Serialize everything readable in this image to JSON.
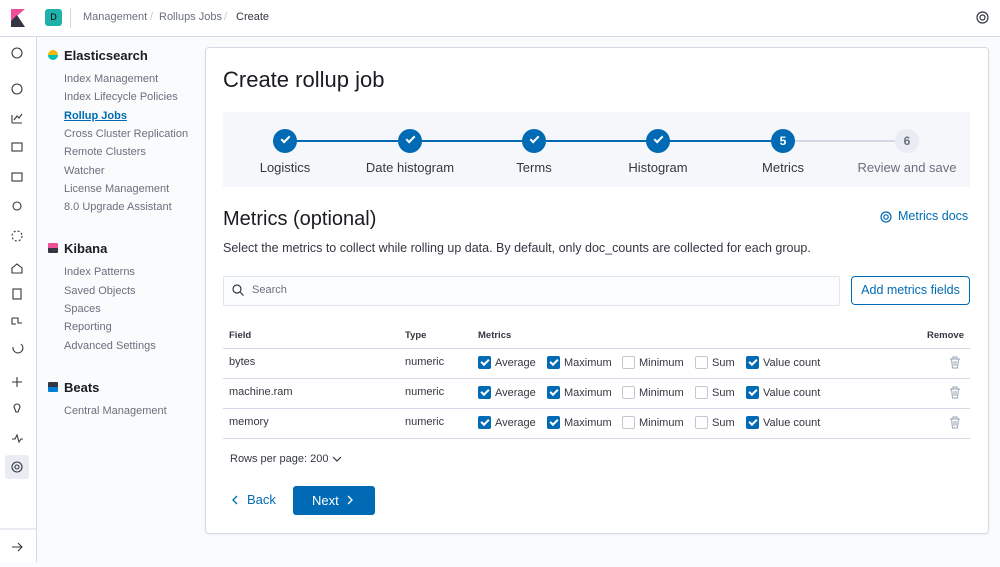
{
  "header": {
    "avatar": "D",
    "breadcrumbs": [
      "Management",
      "Rollups Jobs",
      "Create"
    ]
  },
  "sidebar": [
    {
      "title": "Elasticsearch",
      "items": [
        "Index Management",
        "Index Lifecycle Policies",
        "Rollup Jobs",
        "Cross Cluster Replication",
        "Remote Clusters",
        "Watcher",
        "License Management",
        "8.0 Upgrade Assistant"
      ]
    },
    {
      "title": "Kibana",
      "items": [
        "Index Patterns",
        "Saved Objects",
        "Spaces",
        "Reporting",
        "Advanced Settings"
      ]
    },
    {
      "title": "Beats",
      "items": [
        "Central Management"
      ]
    }
  ],
  "active_item": "Rollup Jobs",
  "page_title": "Create rollup job",
  "steps": [
    {
      "label": "Logistics",
      "status": "complete"
    },
    {
      "label": "Date histogram",
      "status": "complete"
    },
    {
      "label": "Terms",
      "status": "complete"
    },
    {
      "label": "Histogram",
      "status": "complete"
    },
    {
      "label": "Metrics",
      "number": 5,
      "status": "current"
    },
    {
      "label": "Review and save",
      "number": 6,
      "status": "incomplete"
    }
  ],
  "section": {
    "title": "Metrics (optional)",
    "docs_link": "Metrics docs",
    "description": "Select the metrics to collect while rolling up data. By default, only doc_counts are collected for each group."
  },
  "search_placeholder": "Search",
  "add_button": "Add metrics fields",
  "table": {
    "columns": [
      "Field",
      "Type",
      "Metrics",
      "Remove"
    ],
    "rows": [
      {
        "field": "bytes",
        "type": "numeric",
        "metrics": [
          {
            "label": "Average",
            "checked": true
          },
          {
            "label": "Maximum",
            "checked": true
          },
          {
            "label": "Minimum",
            "checked": false
          },
          {
            "label": "Sum",
            "checked": false
          },
          {
            "label": "Value count",
            "checked": true
          }
        ]
      },
      {
        "field": "machine.ram",
        "type": "numeric",
        "metrics": [
          {
            "label": "Average",
            "checked": true
          },
          {
            "label": "Maximum",
            "checked": true
          },
          {
            "label": "Minimum",
            "checked": false
          },
          {
            "label": "Sum",
            "checked": false
          },
          {
            "label": "Value count",
            "checked": true
          }
        ]
      },
      {
        "field": "memory",
        "type": "numeric",
        "metrics": [
          {
            "label": "Average",
            "checked": true
          },
          {
            "label": "Maximum",
            "checked": true
          },
          {
            "label": "Minimum",
            "checked": false
          },
          {
            "label": "Sum",
            "checked": false
          },
          {
            "label": "Value count",
            "checked": true
          }
        ]
      }
    ]
  },
  "rows_per_page": "Rows per page: 200",
  "back_button": "Back",
  "next_button": "Next"
}
